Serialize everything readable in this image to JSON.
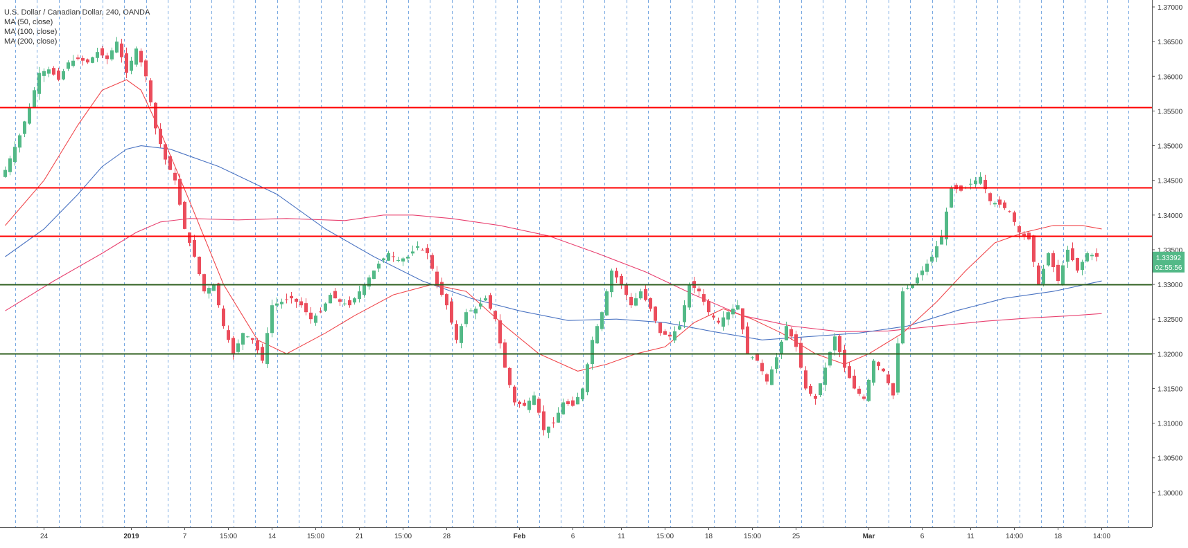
{
  "legend": {
    "title": "U.S. Dollar / Canadian Dollar, 240, OANDA",
    "ma50": "MA (50, close)",
    "ma100": "MA (100, close)",
    "ma200": "MA (200, close)"
  },
  "colors": {
    "up": "#53b987",
    "down": "#eb4d5c",
    "ma50": "#f0474c",
    "ma100": "#4a73c2",
    "ma200": "#e8406f",
    "resistance": "#ff0000",
    "support": "#2f5f1f",
    "grid_v": "#4a8cd8",
    "last_price": "#53b987"
  },
  "chart_data": {
    "type": "candlestick",
    "symbol": "U.S. Dollar / Canadian Dollar",
    "interval": "240",
    "source": "OANDA",
    "ylim": [
      1.295,
      1.371
    ],
    "y_ticks": [
      "1.37000",
      "1.36500",
      "1.36000",
      "1.35500",
      "1.35000",
      "1.34500",
      "1.34000",
      "1.33500",
      "1.33000",
      "1.32500",
      "1.32000",
      "1.31500",
      "1.31000",
      "1.30500",
      "1.30000"
    ],
    "x_ticks": [
      {
        "label": "24",
        "bar": 8
      },
      {
        "label": "2019",
        "bar": 26
      },
      {
        "label": "7",
        "bar": 37
      },
      {
        "label": "15:00",
        "bar": 46
      },
      {
        "label": "14",
        "bar": 55
      },
      {
        "label": "15:00",
        "bar": 64
      },
      {
        "label": "21",
        "bar": 73
      },
      {
        "label": "15:00",
        "bar": 82
      },
      {
        "label": "28",
        "bar": 91
      },
      {
        "label": "Feb",
        "bar": 106
      },
      {
        "label": "6",
        "bar": 117
      },
      {
        "label": "11",
        "bar": 127
      },
      {
        "label": "15:00",
        "bar": 136
      },
      {
        "label": "18",
        "bar": 145
      },
      {
        "label": "15:00",
        "bar": 154
      },
      {
        "label": "25",
        "bar": 163
      },
      {
        "label": "Mar",
        "bar": 178
      },
      {
        "label": "6",
        "bar": 189
      },
      {
        "label": "11",
        "bar": 199
      },
      {
        "label": "14:00",
        "bar": 208
      },
      {
        "label": "18",
        "bar": 217
      },
      {
        "label": "14:00",
        "bar": 226
      }
    ],
    "horizontal_levels": [
      {
        "value": 1.3555,
        "label": "1.35550",
        "kind": "resistance"
      },
      {
        "value": 1.344,
        "label": "1.34400",
        "kind": "resistance"
      },
      {
        "value": 1.337,
        "label": "1.33700",
        "kind": "resistance"
      },
      {
        "value": 1.33,
        "label": "1.33000",
        "kind": "support"
      },
      {
        "value": 1.32,
        "label": "1.32000",
        "kind": "support"
      }
    ],
    "last_price": {
      "value": 1.33392,
      "label": "1.33392",
      "countdown": "02:55:56"
    },
    "close_anchors": [
      [
        0,
        1.3465
      ],
      [
        3,
        1.3515
      ],
      [
        5,
        1.3555
      ],
      [
        7,
        1.3605
      ],
      [
        9,
        1.361
      ],
      [
        11,
        1.3595
      ],
      [
        13,
        1.362
      ],
      [
        15,
        1.3625
      ],
      [
        17,
        1.362
      ],
      [
        19,
        1.3635
      ],
      [
        21,
        1.3625
      ],
      [
        23,
        1.365
      ],
      [
        25,
        1.3605
      ],
      [
        27,
        1.364
      ],
      [
        29,
        1.36
      ],
      [
        31,
        1.3525
      ],
      [
        33,
        1.348
      ],
      [
        35,
        1.345
      ],
      [
        37,
        1.338
      ],
      [
        39,
        1.334
      ],
      [
        41,
        1.329
      ],
      [
        43,
        1.33
      ],
      [
        45,
        1.324
      ],
      [
        47,
        1.32
      ],
      [
        49,
        1.323
      ],
      [
        51,
        1.322
      ],
      [
        53,
        1.319
      ],
      [
        55,
        1.327
      ],
      [
        57,
        1.3275
      ],
      [
        59,
        1.328
      ],
      [
        61,
        1.327
      ],
      [
        63,
        1.325
      ],
      [
        65,
        1.326
      ],
      [
        67,
        1.3285
      ],
      [
        69,
        1.3275
      ],
      [
        71,
        1.327
      ],
      [
        73,
        1.329
      ],
      [
        75,
        1.331
      ],
      [
        77,
        1.333
      ],
      [
        79,
        1.3345
      ],
      [
        81,
        1.3335
      ],
      [
        83,
        1.334
      ],
      [
        85,
        1.3355
      ],
      [
        87,
        1.3345
      ],
      [
        89,
        1.33
      ],
      [
        91,
        1.327
      ],
      [
        93,
        1.322
      ],
      [
        95,
        1.326
      ],
      [
        97,
        1.3265
      ],
      [
        99,
        1.328
      ],
      [
        101,
        1.325
      ],
      [
        103,
        1.318
      ],
      [
        105,
        1.313
      ],
      [
        107,
        1.3125
      ],
      [
        109,
        1.314
      ],
      [
        111,
        1.309
      ],
      [
        113,
        1.31
      ],
      [
        115,
        1.313
      ],
      [
        117,
        1.3125
      ],
      [
        119,
        1.315
      ],
      [
        121,
        1.322
      ],
      [
        123,
        1.326
      ],
      [
        125,
        1.332
      ],
      [
        127,
        1.33
      ],
      [
        129,
        1.327
      ],
      [
        131,
        1.329
      ],
      [
        133,
        1.3265
      ],
      [
        135,
        1.323
      ],
      [
        137,
        1.3225
      ],
      [
        139,
        1.324
      ],
      [
        141,
        1.33
      ],
      [
        143,
        1.329
      ],
      [
        145,
        1.326
      ],
      [
        147,
        1.3245
      ],
      [
        149,
        1.326
      ],
      [
        151,
        1.327
      ],
      [
        153,
        1.32
      ],
      [
        155,
        1.319
      ],
      [
        157,
        1.316
      ],
      [
        159,
        1.3195
      ],
      [
        161,
        1.324
      ],
      [
        163,
        1.321
      ],
      [
        165,
        1.315
      ],
      [
        167,
        1.3135
      ],
      [
        169,
        1.318
      ],
      [
        171,
        1.3225
      ],
      [
        173,
        1.318
      ],
      [
        175,
        1.315
      ],
      [
        177,
        1.3135
      ],
      [
        179,
        1.319
      ],
      [
        181,
        1.3175
      ],
      [
        183,
        1.314
      ],
      [
        185,
        1.329
      ],
      [
        187,
        1.33
      ],
      [
        189,
        1.332
      ],
      [
        191,
        1.334
      ],
      [
        193,
        1.337
      ],
      [
        195,
        1.344
      ],
      [
        197,
        1.3435
      ],
      [
        199,
        1.3445
      ],
      [
        201,
        1.3455
      ],
      [
        203,
        1.342
      ],
      [
        205,
        1.3415
      ],
      [
        207,
        1.3405
      ],
      [
        209,
        1.3375
      ],
      [
        211,
        1.3365
      ],
      [
        213,
        1.33
      ],
      [
        215,
        1.3345
      ],
      [
        217,
        1.3305
      ],
      [
        219,
        1.335
      ],
      [
        221,
        1.332
      ],
      [
        223,
        1.3345
      ],
      [
        225,
        1.334
      ]
    ],
    "ma50_points": [
      [
        0,
        1.3385
      ],
      [
        8,
        1.345
      ],
      [
        15,
        1.353
      ],
      [
        20,
        1.358
      ],
      [
        25,
        1.3595
      ],
      [
        28,
        1.358
      ],
      [
        32,
        1.352
      ],
      [
        38,
        1.342
      ],
      [
        45,
        1.33
      ],
      [
        52,
        1.322
      ],
      [
        58,
        1.32
      ],
      [
        66,
        1.323
      ],
      [
        72,
        1.3255
      ],
      [
        80,
        1.3285
      ],
      [
        88,
        1.33
      ],
      [
        95,
        1.329
      ],
      [
        103,
        1.324
      ],
      [
        110,
        1.32
      ],
      [
        118,
        1.3175
      ],
      [
        124,
        1.3185
      ],
      [
        130,
        1.32
      ],
      [
        136,
        1.321
      ],
      [
        142,
        1.3245
      ],
      [
        148,
        1.3265
      ],
      [
        154,
        1.325
      ],
      [
        160,
        1.323
      ],
      [
        167,
        1.32
      ],
      [
        173,
        1.3185
      ],
      [
        178,
        1.32
      ],
      [
        185,
        1.323
      ],
      [
        192,
        1.3275
      ],
      [
        198,
        1.332
      ],
      [
        204,
        1.336
      ],
      [
        210,
        1.3375
      ],
      [
        216,
        1.3385
      ],
      [
        222,
        1.3385
      ],
      [
        226,
        1.338
      ]
    ],
    "ma100_points": [
      [
        0,
        1.334
      ],
      [
        8,
        1.338
      ],
      [
        15,
        1.343
      ],
      [
        20,
        1.347
      ],
      [
        25,
        1.3495
      ],
      [
        28,
        1.35
      ],
      [
        34,
        1.3495
      ],
      [
        44,
        1.347
      ],
      [
        56,
        1.343
      ],
      [
        66,
        1.338
      ],
      [
        76,
        1.334
      ],
      [
        86,
        1.3305
      ],
      [
        96,
        1.328
      ],
      [
        106,
        1.3262
      ],
      [
        116,
        1.3248
      ],
      [
        126,
        1.325
      ],
      [
        136,
        1.3245
      ],
      [
        146,
        1.3232
      ],
      [
        156,
        1.322
      ],
      [
        166,
        1.3225
      ],
      [
        176,
        1.323
      ],
      [
        186,
        1.324
      ],
      [
        196,
        1.3262
      ],
      [
        206,
        1.328
      ],
      [
        216,
        1.329
      ],
      [
        226,
        1.3305
      ]
    ],
    "ma200_points": [
      [
        0,
        1.3262
      ],
      [
        10,
        1.3305
      ],
      [
        20,
        1.3345
      ],
      [
        27,
        1.3375
      ],
      [
        32,
        1.339
      ],
      [
        38,
        1.3395
      ],
      [
        48,
        1.3393
      ],
      [
        58,
        1.3395
      ],
      [
        70,
        1.3392
      ],
      [
        78,
        1.34
      ],
      [
        84,
        1.34
      ],
      [
        92,
        1.3395
      ],
      [
        102,
        1.3385
      ],
      [
        112,
        1.337
      ],
      [
        122,
        1.3345
      ],
      [
        132,
        1.3318
      ],
      [
        142,
        1.3285
      ],
      [
        152,
        1.3255
      ],
      [
        162,
        1.324
      ],
      [
        172,
        1.3232
      ],
      [
        182,
        1.3233
      ],
      [
        192,
        1.324
      ],
      [
        202,
        1.3247
      ],
      [
        212,
        1.3252
      ],
      [
        220,
        1.3255
      ],
      [
        226,
        1.3258
      ]
    ],
    "bar_count": 227
  }
}
